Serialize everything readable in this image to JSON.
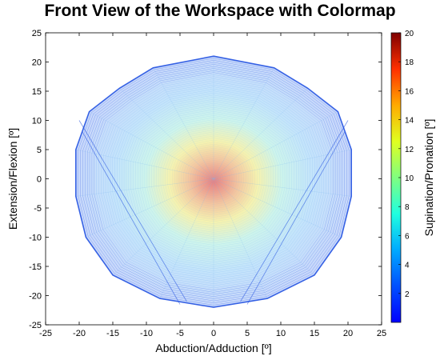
{
  "chart_data": {
    "type": "scatter",
    "title": "Front View of the Workspace with Colormap",
    "xlabel": "Abduction/Adduction [º]",
    "ylabel": "Extension/Flexion [º]",
    "colorbar_label": "Supination/Pronation [º]",
    "xlim": [
      -25,
      25
    ],
    "ylim": [
      -25,
      25
    ],
    "xticks": [
      -25,
      -20,
      -15,
      -10,
      -5,
      0,
      5,
      10,
      15,
      20,
      25
    ],
    "yticks": [
      -25,
      -20,
      -15,
      -10,
      -5,
      0,
      5,
      10,
      15,
      20,
      25
    ],
    "colorbar_range": [
      0,
      20
    ],
    "colorbar_ticks": [
      2,
      4,
      6,
      8,
      10,
      12,
      14,
      16,
      18,
      20
    ],
    "colormap": "jet",
    "grid": false,
    "workspace_boundary": [
      {
        "x": 0,
        "y": 21
      },
      {
        "x": 9,
        "y": 19
      },
      {
        "x": 14,
        "y": 15.5
      },
      {
        "x": 18.5,
        "y": 11.5
      },
      {
        "x": 20.5,
        "y": 5
      },
      {
        "x": 20.5,
        "y": -3
      },
      {
        "x": 19,
        "y": -10
      },
      {
        "x": 15,
        "y": -16.5
      },
      {
        "x": 8,
        "y": -20.5
      },
      {
        "x": 0,
        "y": -22
      },
      {
        "x": -8,
        "y": -20.5
      },
      {
        "x": -15,
        "y": -16.5
      },
      {
        "x": -19,
        "y": -10
      },
      {
        "x": -20.5,
        "y": -3
      },
      {
        "x": -20.5,
        "y": 5
      },
      {
        "x": -18.5,
        "y": 11.5
      },
      {
        "x": -14,
        "y": 15.5
      },
      {
        "x": -9,
        "y": 19
      }
    ],
    "center_value": 20,
    "edge_value": 1,
    "colors": {
      "edge_line": "#1f4fe0",
      "axes": "#000000"
    }
  }
}
